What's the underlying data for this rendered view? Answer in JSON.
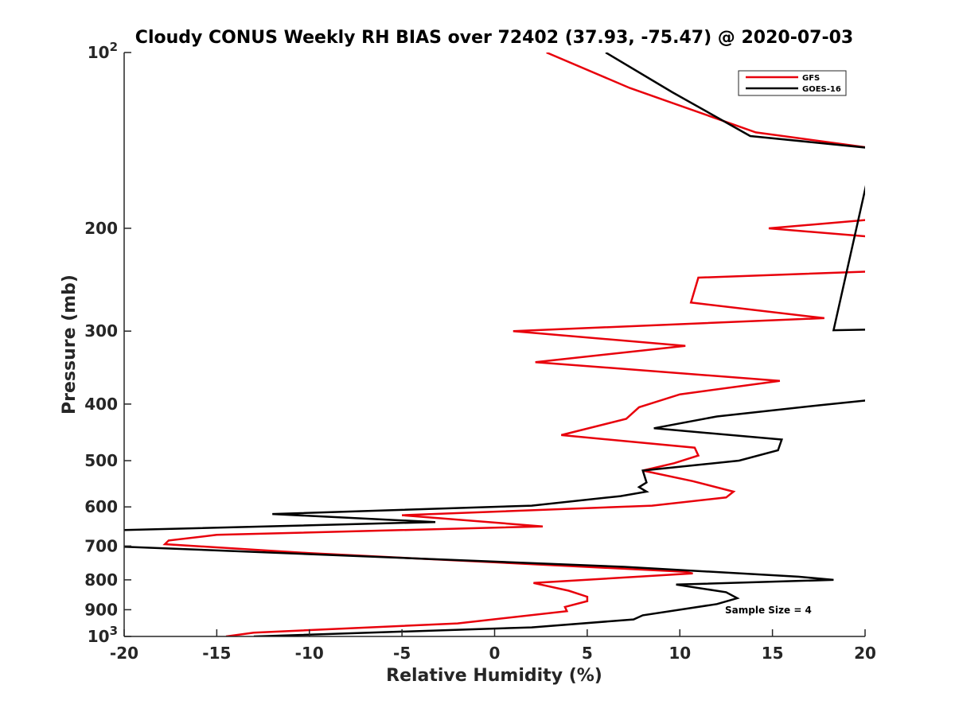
{
  "chart_data": {
    "type": "line",
    "title": "Cloudy CONUS Weekly RH BIAS over 72402 (37.93, -75.47) @ 2020-07-03",
    "xlabel": "Relative Humidity (%)",
    "ylabel": "Pressure (mb)",
    "xlim": [
      -20,
      20
    ],
    "ylim": [
      100,
      1000
    ],
    "y_scale": "log",
    "y_reversed": true,
    "x_ticks": [
      "-20",
      "-15",
      "-10",
      "-5",
      "0",
      "5",
      "10",
      "15",
      "20"
    ],
    "y_ticks": [
      {
        "value": 100,
        "base": "10",
        "exp": "2"
      },
      {
        "value": 200,
        "base": "200",
        "exp": ""
      },
      {
        "value": 300,
        "base": "300",
        "exp": ""
      },
      {
        "value": 400,
        "base": "400",
        "exp": ""
      },
      {
        "value": 500,
        "base": "500",
        "exp": ""
      },
      {
        "value": 600,
        "base": "600",
        "exp": ""
      },
      {
        "value": 700,
        "base": "700",
        "exp": ""
      },
      {
        "value": 800,
        "base": "800",
        "exp": ""
      },
      {
        "value": 900,
        "base": "900",
        "exp": ""
      },
      {
        "value": 1000,
        "base": "10",
        "exp": "3"
      }
    ],
    "grid": false,
    "legend_position": "top-right",
    "annotation": "Sample Size = 4",
    "series": [
      {
        "name": "GFS",
        "color": "#e8000b",
        "points": [
          [
            2.8,
            100
          ],
          [
            7.3,
            115
          ],
          [
            14.1,
            137
          ],
          [
            20.5,
            146
          ],
          [
            20.5,
            193
          ],
          [
            14.8,
            200
          ],
          [
            20.5,
            207
          ],
          [
            20.5,
            237
          ],
          [
            11.0,
            243
          ],
          [
            10.6,
            268
          ],
          [
            17.8,
            285
          ],
          [
            1.0,
            300
          ],
          [
            10.3,
            318
          ],
          [
            2.2,
            339
          ],
          [
            15.4,
            365
          ],
          [
            10.0,
            385
          ],
          [
            7.8,
            405
          ],
          [
            7.1,
            424
          ],
          [
            3.6,
            452
          ],
          [
            10.8,
            475
          ],
          [
            11.0,
            490
          ],
          [
            9.7,
            505
          ],
          [
            8.0,
            520
          ],
          [
            10.7,
            542
          ],
          [
            12.9,
            565
          ],
          [
            12.5,
            578
          ],
          [
            8.5,
            597
          ],
          [
            -5.0,
            620
          ],
          [
            2.6,
            648
          ],
          [
            -15.0,
            670
          ],
          [
            -17.6,
            685
          ],
          [
            -17.8,
            695
          ],
          [
            -10.0,
            720
          ],
          [
            10.3,
            775
          ],
          [
            10.7,
            780
          ],
          [
            2.1,
            810
          ],
          [
            4.0,
            835
          ],
          [
            5.0,
            855
          ],
          [
            5.0,
            870
          ],
          [
            3.8,
            890
          ],
          [
            3.9,
            905
          ],
          [
            -2.0,
            950
          ],
          [
            -13.0,
            985
          ],
          [
            -14.5,
            1000
          ]
        ]
      },
      {
        "name": "GOES-16",
        "color": "#000000",
        "points": [
          [
            6.0,
            100
          ],
          [
            9.6,
            117
          ],
          [
            13.8,
            139
          ],
          [
            20.5,
            146
          ],
          [
            18.3,
            299
          ],
          [
            20.5,
            298
          ],
          [
            20.5,
            306
          ],
          [
            20.5,
            393
          ],
          [
            17.5,
            402
          ],
          [
            12.0,
            420
          ],
          [
            8.6,
            440
          ],
          [
            15.5,
            460
          ],
          [
            15.3,
            480
          ],
          [
            13.2,
            500
          ],
          [
            8.0,
            520
          ],
          [
            8.2,
            545
          ],
          [
            7.8,
            555
          ],
          [
            8.2,
            565
          ],
          [
            6.8,
            575
          ],
          [
            2.0,
            597
          ],
          [
            -12.0,
            617
          ],
          [
            -3.2,
            637
          ],
          [
            -20.5,
            658
          ],
          [
            -20.5,
            697
          ],
          [
            -20.0,
            702
          ],
          [
            7.0,
            760
          ],
          [
            16.4,
            790
          ],
          [
            18.3,
            800
          ],
          [
            9.8,
            815
          ],
          [
            12.5,
            840
          ],
          [
            13.1,
            860
          ],
          [
            12.0,
            880
          ],
          [
            8.0,
            920
          ],
          [
            7.5,
            935
          ],
          [
            2.0,
            965
          ],
          [
            -13.0,
            1000
          ]
        ]
      }
    ]
  }
}
